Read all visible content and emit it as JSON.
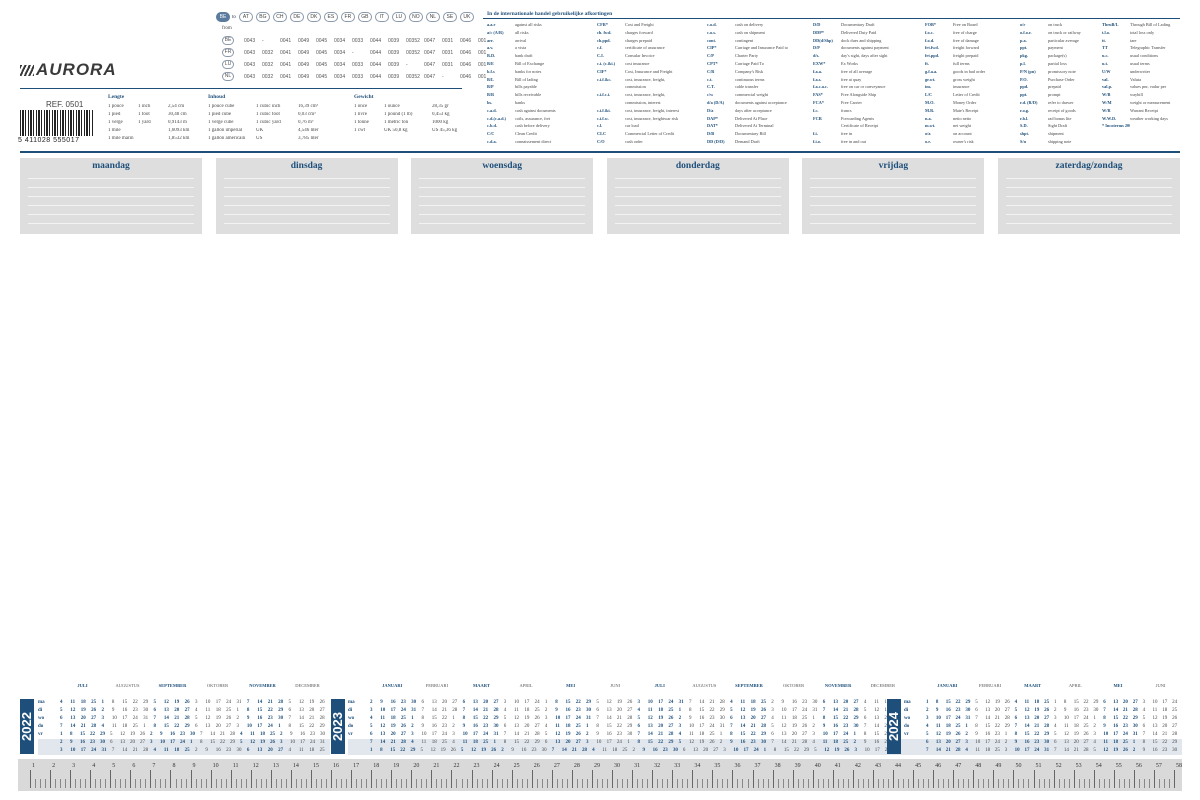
{
  "brand": {
    "name": "AURORA",
    "ref": "REF. 0501",
    "barcode": "5 411028 555017"
  },
  "flags": {
    "to_label": "to",
    "from_label": "from",
    "codes": [
      "BE",
      "AT",
      "BG",
      "CH",
      "DE",
      "DK",
      "ES",
      "FR",
      "GB",
      "IT",
      "LU",
      "NO",
      "NL",
      "SE",
      "UK"
    ],
    "rows": [
      {
        "c": "BE",
        "v": [
          "0043",
          "-",
          "0041",
          "0049",
          "0045",
          "0034",
          "0033",
          "0044",
          "0039",
          "00352",
          "0047",
          "0031",
          "0046",
          "001"
        ]
      },
      {
        "c": "FR",
        "v": [
          "0043",
          "0032",
          "0041",
          "0049",
          "0045",
          "0034",
          "-",
          "0044",
          "0039",
          "00352",
          "0047",
          "0031",
          "0046",
          "001"
        ]
      },
      {
        "c": "LU",
        "v": [
          "0043",
          "0032",
          "0041",
          "0049",
          "0045",
          "0034",
          "0033",
          "0044",
          "0039",
          "-",
          "0047",
          "0031",
          "0046",
          "001"
        ]
      },
      {
        "c": "NL",
        "v": [
          "0043",
          "0032",
          "0041",
          "0049",
          "0045",
          "0034",
          "0033",
          "0044",
          "0039",
          "00352",
          "0047",
          "-",
          "0046",
          "001"
        ]
      }
    ]
  },
  "conversions": {
    "lengte": {
      "title": "Lengte",
      "rows": [
        [
          "1 pouce",
          "1 inch",
          "2,54 cm"
        ],
        [
          "1 pied",
          "1 foot",
          "30,48 cm"
        ],
        [
          "1 verge",
          "1 yard",
          "0,9143 m"
        ],
        [
          "1 mile",
          "",
          "1,6093 km"
        ],
        [
          "1 mile marin",
          "",
          "1,8532 km"
        ]
      ]
    },
    "inhoud": {
      "title": "Inhoud",
      "rows": [
        [
          "1 pouce cube",
          "1 cubic inch",
          "16,39 cm³"
        ],
        [
          "1 pied cube",
          "1 cubic foot",
          "0,03 cm³"
        ],
        [
          "1 verge cube",
          "1 cubic yard",
          "0,76 m³"
        ],
        [
          "1 gallon impérial",
          "UK",
          "4,546 liter"
        ],
        [
          "1 gallon américain",
          "US",
          "3,785 liter"
        ]
      ]
    },
    "gewicht": {
      "title": "Gewicht",
      "rows": [
        [
          "1 once",
          "1 ounce",
          "28,35 gr"
        ],
        [
          "1 livre",
          "1 pound (1 lb)",
          "0,453 kg"
        ],
        [
          "1 tonne",
          "1 metric ton",
          "1000 kg"
        ],
        [
          "1 cwt",
          "UK 50,8 kg",
          "US 45,36 kg"
        ]
      ]
    }
  },
  "abbreviations": {
    "title": "In de internationale handel gebruikelijke afkortingen",
    "columns": [
      [
        [
          "a.a.r",
          "against all risks"
        ],
        [
          "a/c (A/R)",
          "all risks"
        ],
        [
          "arr.",
          "arrival"
        ],
        [
          "a.v.",
          "a vista"
        ],
        [
          "B.D.",
          "bank draft"
        ],
        [
          "B/E",
          "Bill of Exchange"
        ],
        [
          "b.f.s",
          "banks for notes"
        ],
        [
          "B/L",
          "Bill of lading"
        ],
        [
          "B/P",
          "bills payable"
        ],
        [
          "B/R",
          "bills receivable"
        ],
        [
          "bs.",
          "banks"
        ],
        [
          "c.a.d.",
          "cash against documents"
        ],
        [
          "c.d.(c.a.d.)",
          "coils, assurance, fret"
        ],
        [
          "c.b.d.",
          "cash before delivery"
        ],
        [
          "C/C",
          "Clean Credit"
        ],
        [
          "c.d.a.",
          "connaissement direct"
        ]
      ],
      [
        [
          "CFR*",
          "Cost and Freight"
        ],
        [
          "ch. fwd.",
          "charges forward"
        ],
        [
          "ch.ppd.",
          "charges prepaid"
        ],
        [
          "c.f.",
          "certificate of assurance"
        ],
        [
          "C.I.",
          "Consular Invoice"
        ],
        [
          "c.i. (c.&i.)",
          "cost insurance"
        ],
        [
          "CIF*",
          "Cost, Insurance and Freight"
        ],
        [
          "c.i.f.&c.",
          "cost, insurance, freight,"
        ],
        [
          "",
          "commission"
        ],
        [
          "c.i.f.c.i.",
          "cost, insurance, freight,"
        ],
        [
          "",
          "commission, interest"
        ],
        [
          "c.i.f.&i.",
          "cost, insurance, freight, interest"
        ],
        [
          "c.i.f.w.",
          "cost, insurance, freightwar risk"
        ],
        [
          "c.l.",
          "car load"
        ],
        [
          "CLC",
          "Commercial Letter of Credit"
        ],
        [
          "C/O",
          "cash order"
        ]
      ],
      [
        [
          "c.o.d.",
          "cash on delivery"
        ],
        [
          "c.o.s.",
          "cash on shipment"
        ],
        [
          "cont.",
          "contingent"
        ],
        [
          "CIP*",
          "Carriage and Insurance Paid to"
        ],
        [
          "C/P",
          "Charter Party"
        ],
        [
          "CPT*",
          "Carriage Paid To"
        ],
        [
          "C/R",
          "Company's Risk"
        ],
        [
          "c.t.",
          "continuous terms"
        ],
        [
          "C.T.",
          "cable transfer"
        ],
        [
          "c/w",
          "commercial weight"
        ],
        [
          "d/a (D/A)",
          "documents against acceptance"
        ],
        [
          "D/a",
          "days after acceptance"
        ],
        [
          "DAP*",
          "Delivered At Place"
        ],
        [
          "DAT*",
          "Delivered At Terminal"
        ],
        [
          "D/B",
          "Documentary Bill"
        ],
        [
          "DD (D/D)",
          "Demand Draft"
        ]
      ],
      [
        [
          "D/D",
          "Documentary Draft"
        ],
        [
          "DDP*",
          "Delivered Duty Paid"
        ],
        [
          "DD(d/Shp)",
          "dock dues and shipping"
        ],
        [
          "D/P",
          "documents against payment"
        ],
        [
          "d/s.",
          "day's sight, days after sight"
        ],
        [
          "EXW*",
          "Ex Works"
        ],
        [
          "f.a.a.",
          "free of all average"
        ],
        [
          "f.a.s.",
          "free at quay"
        ],
        [
          "f.a.c.a.c.",
          "free on car or conveyance"
        ],
        [
          "FAS*",
          "Free Alongside Ship"
        ],
        [
          "FCA*",
          "Free Carrier"
        ],
        [
          "f.c.",
          "francs"
        ],
        [
          "FCR",
          "Forwarding Agents"
        ],
        [
          "",
          "Certificate of Receipt"
        ],
        [
          "f.i.",
          "free in"
        ],
        [
          "f.i.o.",
          "free in and out"
        ]
      ],
      [
        [
          "FOB*",
          "Free on Board"
        ],
        [
          "f.o.c.",
          "free of charge"
        ],
        [
          "f.o.d.",
          "free of damage"
        ],
        [
          "frt.fwd.",
          "freight forward"
        ],
        [
          "frt.ppd.",
          "freight prepaid"
        ],
        [
          "ft.",
          "full terms"
        ],
        [
          "g.f.a.a.",
          "goods in bad order"
        ],
        [
          "gr.wt.",
          "gross weight"
        ],
        [
          "ins.",
          "insurance"
        ],
        [
          "L/C",
          "Letter of Credit"
        ],
        [
          "M.O.",
          "Money Order"
        ],
        [
          "M.R.",
          "Mate's Receipt"
        ],
        [
          "n.a.",
          "netto netto"
        ],
        [
          "m.wt.",
          "net weight"
        ],
        [
          "o/a",
          "on account"
        ],
        [
          "o.r.",
          "owner's risk"
        ]
      ],
      [
        [
          "o/r",
          "on truck"
        ],
        [
          "o.f.o.r.",
          "on truck or railway"
        ],
        [
          "p.a.",
          "particular average"
        ],
        [
          "ppt.",
          "payment"
        ],
        [
          "pkg.",
          "package(s)"
        ],
        [
          "p.l.",
          "partial loss"
        ],
        [
          "P/N (pn)",
          "promissory note"
        ],
        [
          "P.O.",
          "Purchase Order"
        ],
        [
          "ppd.",
          "prepaid"
        ],
        [
          "ppt.",
          "prompt"
        ],
        [
          "r.d. (R/D)",
          "refer to drawer"
        ],
        [
          "r.o.g.",
          "receipt of goods"
        ],
        [
          "r.b.l.",
          "rad bonus lite"
        ],
        [
          "S.D.",
          "Sight Draft"
        ],
        [
          "shpt.",
          "shipment"
        ],
        [
          "S/n",
          "shipping note"
        ]
      ],
      [
        [
          "ThruB/L",
          "Through Bill of Lading"
        ],
        [
          "t.l.o.",
          "total loss only"
        ],
        [
          "tt.",
          "tare"
        ],
        [
          "TT",
          "Telegraphic Transfer"
        ],
        [
          "u.c.",
          "usual conditions"
        ],
        [
          "u.t.",
          "usual terms"
        ],
        [
          "U/W",
          "underwriter"
        ],
        [
          "val.",
          "Valuta"
        ],
        [
          "val.p.",
          "values pnr, vadur per"
        ],
        [
          "W/B",
          "waybill"
        ],
        [
          "W/M",
          "weight or measurement"
        ],
        [
          "W/R",
          "Warrant Receipt"
        ],
        [
          "W.W.D.",
          "weather working days"
        ],
        [
          "* Incoterms 2000",
          ""
        ]
      ]
    ]
  },
  "weekdays": [
    "maandag",
    "dinsdag",
    "woensdag",
    "donderdag",
    "vrijdag",
    "zaterdag/zondag"
  ],
  "calendar": {
    "day_labels": [
      "ma",
      "di",
      "wo",
      "do",
      "vr",
      "za",
      "zo"
    ],
    "years": [
      {
        "year": "2022",
        "months": [
          "JULI",
          "AUGUSTUS",
          "SEPTEMBER",
          "OKTOBER",
          "NOVEMBER",
          "DECEMBER"
        ]
      },
      {
        "year": "2023",
        "months": [
          "JANUARI",
          "FEBRUARI",
          "MAART",
          "APRIL",
          "MEI",
          "JUNI",
          "JULI",
          "AUGUSTUS",
          "SEPTEMBER",
          "OKTOBER",
          "NOVEMBER",
          "DECEMBER"
        ]
      },
      {
        "year": "2024",
        "months": [
          "JANUARI",
          "FEBRUARI",
          "MAART",
          "APRIL",
          "MEI",
          "JUNI"
        ]
      }
    ],
    "rows_2022": [
      "4 11 18 25  1  8 15 22 29  5 12 19 26  3 10 17 24 31  7 14 21 28  5 12 19 26",
      "5 12 19 26  2  9 16 23 30  6 13 20 27  4 11 18 25  1  8 15 22 29  6 13 20 27",
      "6 13 20 27  3 10 17 24 31  7 14 21 28  5 12 19 26  2  9 16 23 30  7 14 21 28",
      "7 14 21 28  4 11 18 25  1  8 15 22 29  6 13 20 27  3 10 17 24  1  8 15 22 29",
      "1  8 15 22 29  5 12 19 26  2  9 16 23 30  7 14 21 28  4 11 18 25  2  9 16 23 30",
      "2  9 16 23 30  6 13 20 27  3 10 17 24  1  8 15 22 29  5 12 19 26  3 10 17 24 31",
      "3 10 17 24 31  7 14 21 28  4 11 18 25  2  9 16 23 30  6 13 20 27  4 11 18 25"
    ],
    "rows_2023": [
      "2  9 16 23 30  6 13 20 27  6 13 20 27  3 10 17 24  1  8 15 22 29  5 12 19 26  3 10 17 24 31  7 14 21 28  4 11 18 25  2  9 16 23 30  6 13 20 27  4 11 18 25",
      "3 10 17 24 31  7 14 21 28  7 14 21 28  4 11 18 25  2  9 16 23 30  6 13 20 27  4 11 18 25  1  8 15 22 29  5 12 19 26  3 10 17 24 31  7 14 21 28  5 12 19 26",
      "4 11 18 25  1  8 15 22  1  8 15 22 29  5 12 19 26  3 10 17 24 31  7 14 21 28  5 12 19 26  2  9 16 23 30  6 13 20 27  4 11 18 25  1  8 15 22 29  6 13 20 27",
      "5 12 19 26  2  9 16 23  2  9 16 23 30  6 13 20 27  4 11 18 25  1  8 15 22 29  6 13 20 27  3 10 17 24 31  7 14 21 28  5 12 19 26  2  9 16 23 30  7 14 21 28",
      "6 13 20 27  3 10 17 24  3 10 17 24 31  7 14 21 28  5 12 19 26  2  9 16 23 30  7 14 21 28  4 11 18 25  1  8 15 22 29  6 13 20 27  3 10 17 24  1  8 15 22 29",
      "7 14 21 28  4 11 18 25  4 11 18 25  1  8 15 22 29  6 13 20 27  3 10 17 24  1  8 15 22 29  5 12 19 26  2  9 16 23 30  7 14 21 28  4 11 18 25  2  9 16 23 30",
      "1  8 15 22 29  5 12 19 26  5 12 19 26  2  9 16 23 30  7 14 21 28  4 11 18 25  2  9 16 23 30  6 13 20 27  3 10 17 24  1  8 15 22 29  5 12 19 26  3 10 17 24 31"
    ],
    "rows_2024": [
      "1  8 15 22 29  5 12 19 26  4 11 18 25  1  8 15 22 29  6 13 20 27  3 10 17 24",
      "2  9 16 23 30  6 13 20 27  5 12 19 26  2  9 16 23 30  7 14 21 28  4 11 18 25",
      "3 10 17 24 31  7 14 21 28  6 13 20 27  3 10 17 24  1  8 15 22 29  5 12 19 26",
      "4 11 18 25  1  8 15 22 29  7 14 21 28  4 11 18 25  2  9 16 23 30  6 13 20 27",
      "5 12 19 26  2  9 16 23  1  8 15 22 29  5 12 19 26  3 10 17 24 31  7 14 21 28",
      "6 13 20 27  3 10 17 24  2  9 16 23 30  6 13 20 27  4 11 18 25  1  8 15 22 29",
      "7 14 21 28  4 11 18 25  3 10 17 24 31  7 14 21 28  5 12 19 26  2  9 16 23 30"
    ]
  },
  "ruler": {
    "start": 1,
    "end": 58
  }
}
